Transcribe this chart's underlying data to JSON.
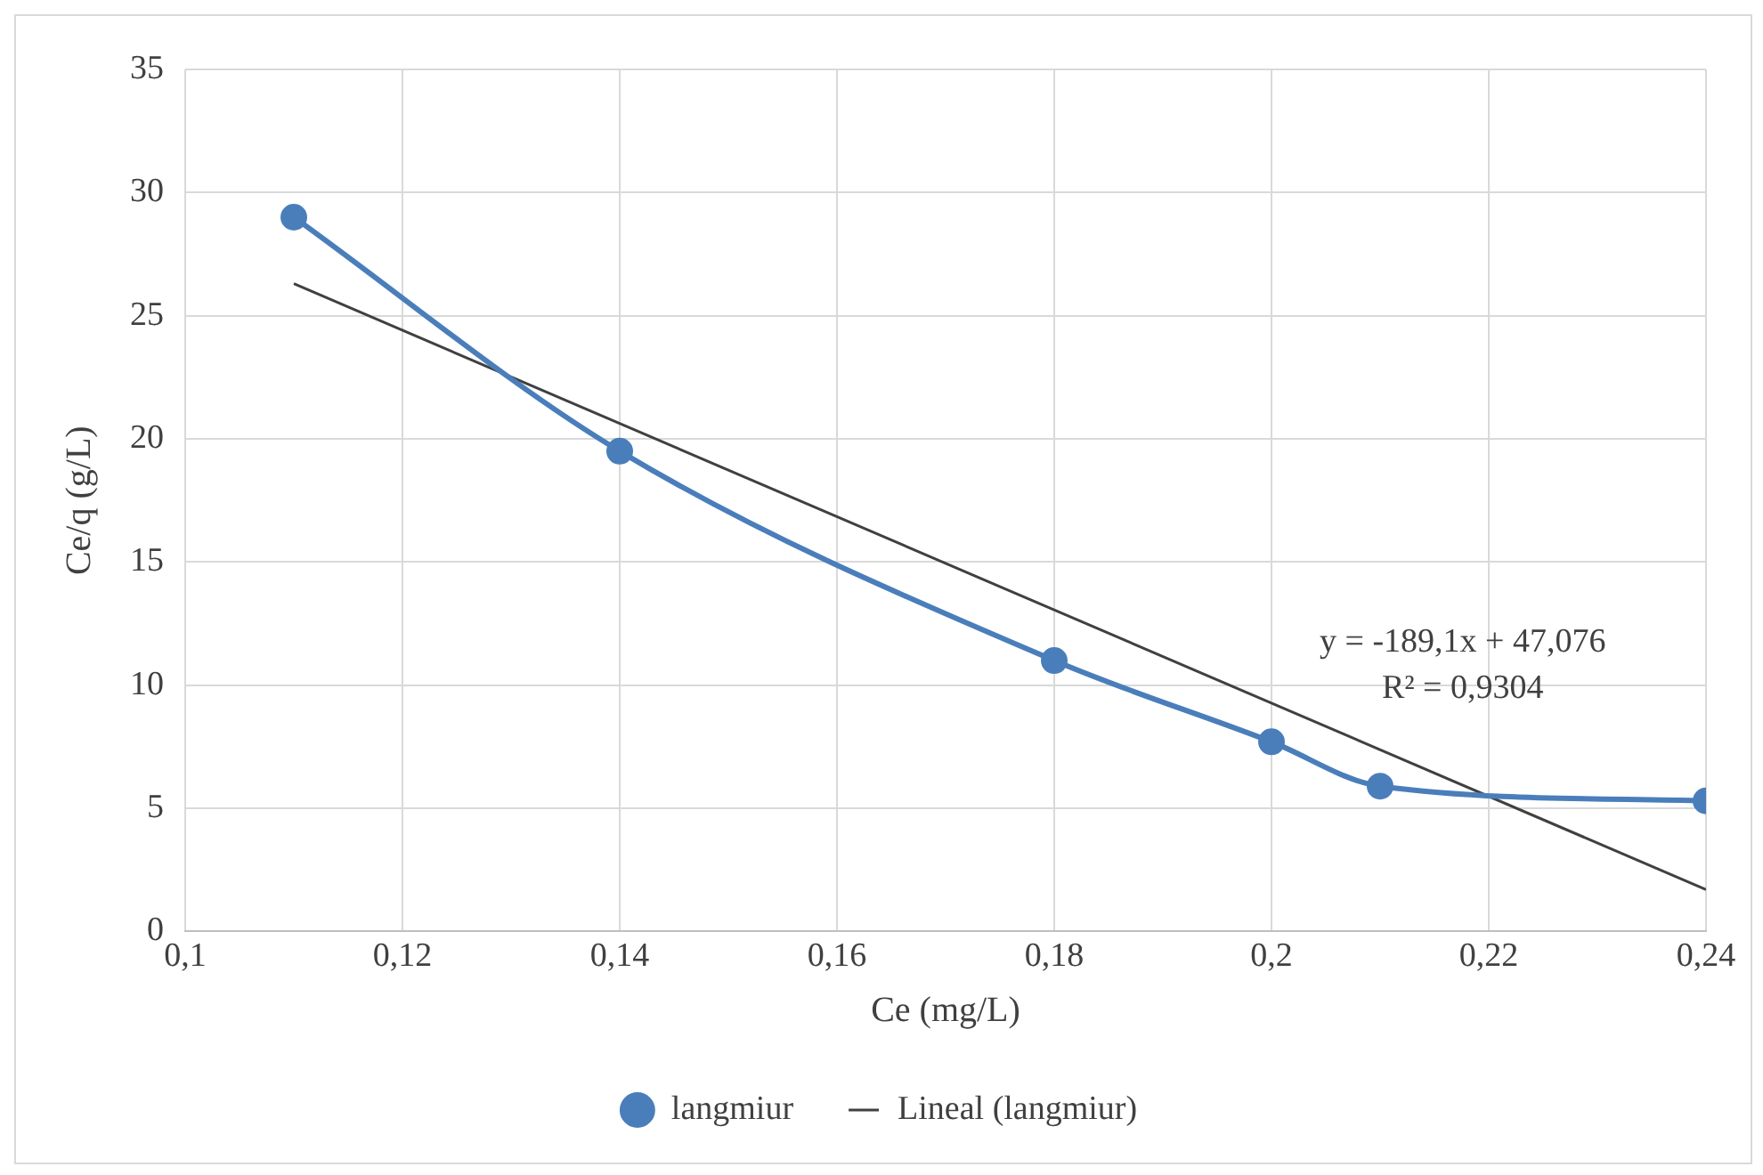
{
  "chart_data": {
    "type": "scatter",
    "xlabel": "Ce (mg/L)",
    "ylabel": "Ce/q (g/L)",
    "x": [
      0.11,
      0.14,
      0.18,
      0.2,
      0.21,
      0.24
    ],
    "series": [
      {
        "name": "langmiur",
        "type": "line",
        "color": "#4a7ebb",
        "values": [
          29.0,
          19.5,
          11.0,
          7.7,
          5.9,
          5.3
        ],
        "marker": "circle"
      },
      {
        "name": "Lineal (langmiur)",
        "type": "line",
        "color": "#404040",
        "x": [
          0.11,
          0.24
        ],
        "values": [
          26.3,
          1.7
        ],
        "marker": "none"
      }
    ],
    "xlim": [
      0.1,
      0.24
    ],
    "xticks": [
      {
        "value": 0.1,
        "label": "0,1"
      },
      {
        "value": 0.12,
        "label": "0,12"
      },
      {
        "value": 0.14,
        "label": "0,14"
      },
      {
        "value": 0.16,
        "label": "0,16"
      },
      {
        "value": 0.18,
        "label": "0,18"
      },
      {
        "value": 0.2,
        "label": "0,2"
      },
      {
        "value": 0.22,
        "label": "0,22"
      },
      {
        "value": 0.24,
        "label": "0,24"
      }
    ],
    "ylim": [
      0,
      35
    ],
    "yticks": [
      0,
      5,
      10,
      15,
      20,
      25,
      30,
      35
    ],
    "grid": true,
    "legend": "bottom",
    "annotations": [
      "y = -189,1x + 47,076",
      "R² = 0,9304"
    ]
  }
}
